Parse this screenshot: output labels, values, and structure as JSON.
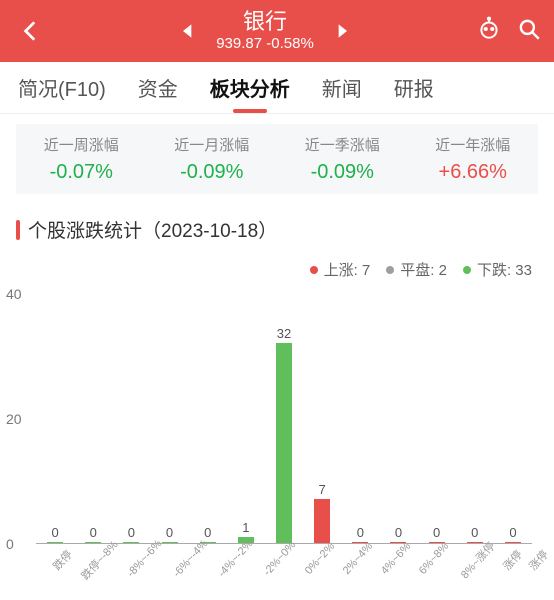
{
  "header": {
    "title": "银行",
    "price": "939.87",
    "change": "-0.58%"
  },
  "tabs": [
    {
      "label": "简况(F10)",
      "active": false
    },
    {
      "label": "资金",
      "active": false
    },
    {
      "label": "板块分析",
      "active": true
    },
    {
      "label": "新闻",
      "active": false
    },
    {
      "label": "研报",
      "active": false
    }
  ],
  "period_stats": [
    {
      "label": "近一周涨幅",
      "value": "-0.07%",
      "color": "green"
    },
    {
      "label": "近一月涨幅",
      "value": "-0.09%",
      "color": "green"
    },
    {
      "label": "近一季涨幅",
      "value": "-0.09%",
      "color": "green"
    },
    {
      "label": "近一年涨幅",
      "value": "+6.66%",
      "color": "red"
    }
  ],
  "section_title": "个股涨跌统计（2023-10-18）",
  "legend": [
    {
      "label": "上涨: 7",
      "color": "#e94f4a"
    },
    {
      "label": "平盘: 2",
      "color": "#9e9e9e"
    },
    {
      "label": "下跌: 33",
      "color": "#60bf5a"
    }
  ],
  "chart": {
    "ymax": 40,
    "yticks": [
      {
        "v": 40,
        "label": "40"
      },
      {
        "v": 20,
        "label": "20"
      },
      {
        "v": 0,
        "label": "0"
      }
    ],
    "colors": {
      "down": "#60bf5a",
      "up": "#e94f4a",
      "flat": "#9e9e9e"
    },
    "bars": [
      {
        "x": "跌停",
        "v": 0,
        "c": "down"
      },
      {
        "x": "跌停~-8%",
        "v": 0,
        "c": "down"
      },
      {
        "x": "-8%~-6%",
        "v": 0,
        "c": "down"
      },
      {
        "x": "-6%~-4%",
        "v": 0,
        "c": "down"
      },
      {
        "x": "-4%~-2%",
        "v": 0,
        "c": "down"
      },
      {
        "x": "-2%~0%",
        "v": 1,
        "c": "down"
      },
      {
        "x": "0%~2%",
        "v": 32,
        "c": "down"
      },
      {
        "x": "2%~4%",
        "v": 7,
        "c": "up"
      },
      {
        "x": "4%~6%",
        "v": 0,
        "c": "up"
      },
      {
        "x": "6%~8%",
        "v": 0,
        "c": "up"
      },
      {
        "x": "8%~涨停",
        "v": 0,
        "c": "up"
      },
      {
        "x": "涨停",
        "v": 0,
        "c": "up"
      },
      {
        "x": "涨停",
        "v": 0,
        "c": "up"
      }
    ],
    "seventh_bar_color_override": "#60bf5a"
  }
}
